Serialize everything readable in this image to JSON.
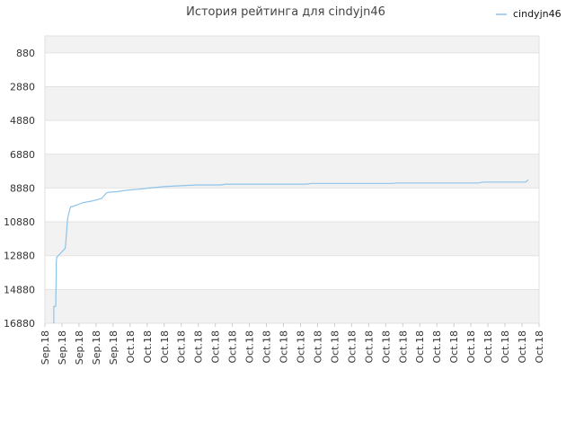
{
  "chart_data": {
    "type": "line",
    "title": "История рейтинга для cindyjn46",
    "xlabel": "",
    "ylabel": "",
    "y_inverted": true,
    "ylim": [
      16880,
      -120
    ],
    "yticks": [
      "880",
      "2880",
      "4880",
      "6880",
      "8880",
      "10880",
      "12880",
      "14880",
      "16880"
    ],
    "ytick_values": [
      880,
      2880,
      4880,
      6880,
      8880,
      10880,
      12880,
      14880,
      16880
    ],
    "xticks": [
      "Sep.18",
      "Sep.18",
      "Sep.18",
      "Sep.18",
      "Sep.18",
      "Oct.18",
      "Oct.18",
      "Oct.18",
      "Oct.18",
      "Oct.18",
      "Oct.18",
      "Oct.18",
      "Oct.18",
      "Oct.18",
      "Oct.18",
      "Oct.18",
      "Oct.18",
      "Oct.18",
      "Oct.18",
      "Oct.18",
      "Oct.18",
      "Oct.18",
      "Oct.18",
      "Oct.18",
      "Oct.18",
      "Oct.18",
      "Oct.18",
      "Oct.18",
      "Oct.18",
      "Oct.18"
    ],
    "grid": true,
    "legend_position": "top-right",
    "series_color": "#8ec3ea",
    "band_color": "#f2f2f2",
    "series": [
      {
        "name": "cindyjn46",
        "x": [
          0.0,
          0.0,
          0.004,
          0.005,
          0.005,
          0.006,
          0.024,
          0.026,
          0.028,
          0.029,
          0.031,
          0.034,
          0.036,
          0.039,
          0.05,
          0.06,
          0.08,
          0.1,
          0.11,
          0.115,
          0.13,
          0.15,
          0.18,
          0.2,
          0.23,
          0.26,
          0.3,
          0.35,
          0.36,
          0.45,
          0.53,
          0.54,
          0.63,
          0.71,
          0.72,
          0.81,
          0.89,
          0.9,
          0.99,
          0.995
        ],
        "y": [
          16880,
          15880,
          15880,
          14000,
          13280,
          12980,
          12450,
          11800,
          10980,
          10700,
          10400,
          10100,
          9980,
          9980,
          9870,
          9750,
          9650,
          9500,
          9180,
          9130,
          9100,
          9020,
          8950,
          8880,
          8800,
          8750,
          8700,
          8700,
          8650,
          8650,
          8650,
          8610,
          8610,
          8610,
          8580,
          8580,
          8580,
          8530,
          8530,
          8380
        ]
      }
    ]
  }
}
